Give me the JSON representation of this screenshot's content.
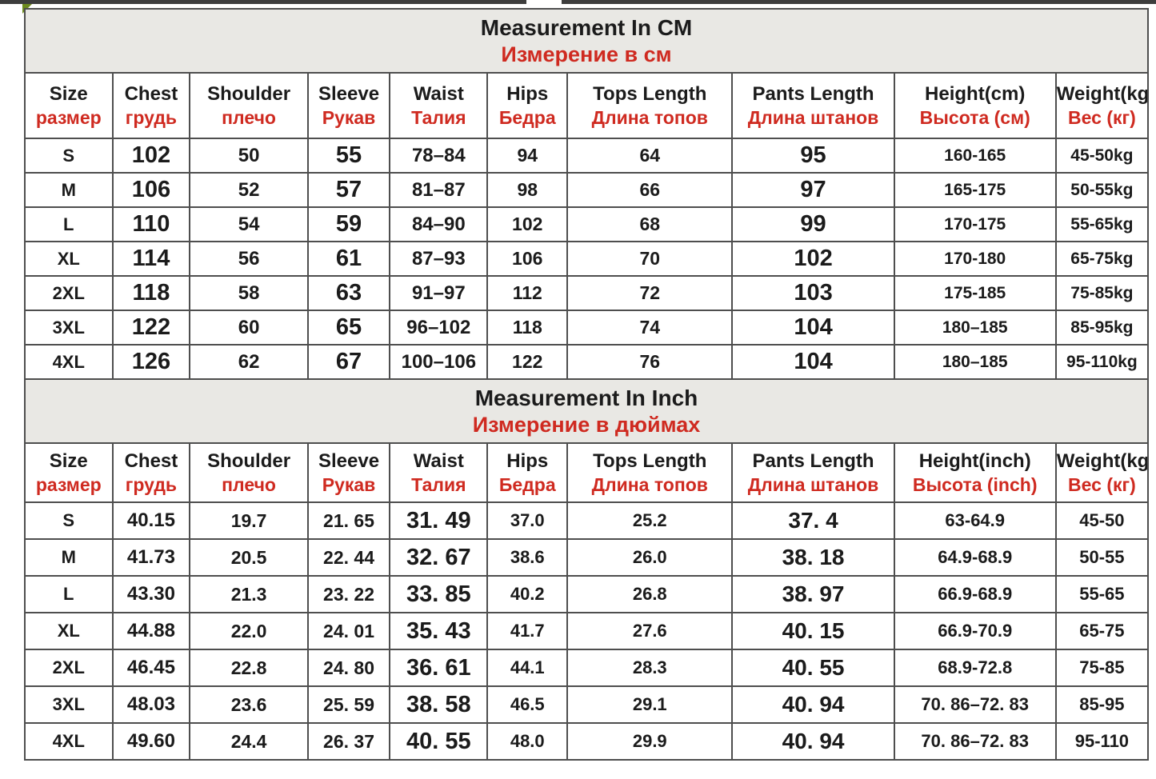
{
  "page": {
    "accent_red": "#cf2a20",
    "text_color": "#1b1b1b",
    "band_bg": "#e9e8e4",
    "border_color": "#4e4e4e"
  },
  "cm_section": {
    "title_en": "Measurement In CM",
    "title_ru": "Измерение в см",
    "headers_en": [
      "Size",
      "Chest",
      "Shoulder",
      "Sleeve",
      "Waist",
      "Hips",
      "Tops Length",
      "Pants Length",
      "Height(cm)",
      "Weight(kg)"
    ],
    "headers_ru": [
      "размер",
      "грудь",
      "плечо",
      "Рукав",
      "Талия",
      "Бедра",
      "Длина топов",
      "Длина штанов",
      "Высота (см)",
      "Вес (кг)"
    ],
    "rows": [
      [
        "S",
        "102",
        "50",
        "55",
        "78–84",
        "94",
        "64",
        "95",
        "160-165",
        "45-50kg"
      ],
      [
        "M",
        "106",
        "52",
        "57",
        "81–87",
        "98",
        "66",
        "97",
        "165-175",
        "50-55kg"
      ],
      [
        "L",
        "110",
        "54",
        "59",
        "84–90",
        "102",
        "68",
        "99",
        "170-175",
        "55-65kg"
      ],
      [
        "XL",
        "114",
        "56",
        "61",
        "87–93",
        "106",
        "70",
        "102",
        "170-180",
        "65-75kg"
      ],
      [
        "2XL",
        "118",
        "58",
        "63",
        "91–97",
        "112",
        "72",
        "103",
        "175-185",
        "75-85kg"
      ],
      [
        "3XL",
        "122",
        "60",
        "65",
        "96–102",
        "118",
        "74",
        "104",
        "180–185",
        "85-95kg"
      ],
      [
        "4XL",
        "126",
        "62",
        "67",
        "100–106",
        "122",
        "76",
        "104",
        "180–185",
        "95-110kg"
      ]
    ]
  },
  "inch_section": {
    "title_en": "Measurement In Inch",
    "title_ru": "Измерение в дюймах",
    "headers_en": [
      "Size",
      "Chest",
      "Shoulder",
      "Sleeve",
      "Waist",
      "Hips",
      "Tops Length",
      "Pants Length",
      "Height(inch)",
      "Weight(kg)"
    ],
    "headers_ru": [
      "размер",
      "грудь",
      "плечо",
      "Рукав",
      "Талия",
      "Бедра",
      "Длина топов",
      "Длина штанов",
      "Высота (inch)",
      "Вес (кг)"
    ],
    "rows": [
      [
        "S",
        "40.15",
        "19.7",
        "21. 65",
        "31. 49",
        "37.0",
        "25.2",
        "37. 4",
        "63-64.9",
        "45-50"
      ],
      [
        "M",
        "41.73",
        "20.5",
        "22. 44",
        "32. 67",
        "38.6",
        "26.0",
        "38. 18",
        "64.9-68.9",
        "50-55"
      ],
      [
        "L",
        "43.30",
        "21.3",
        "23. 22",
        "33. 85",
        "40.2",
        "26.8",
        "38. 97",
        "66.9-68.9",
        "55-65"
      ],
      [
        "XL",
        "44.88",
        "22.0",
        "24. 01",
        "35. 43",
        "41.7",
        "27.6",
        "40. 15",
        "66.9-70.9",
        "65-75"
      ],
      [
        "2XL",
        "46.45",
        "22.8",
        "24. 80",
        "36. 61",
        "44.1",
        "28.3",
        "40. 55",
        "68.9-72.8",
        "75-85"
      ],
      [
        "3XL",
        "48.03",
        "23.6",
        "25. 59",
        "38. 58",
        "46.5",
        "29.1",
        "40. 94",
        "70. 86–72. 83",
        "85-95"
      ],
      [
        "4XL",
        "49.60",
        "24.4",
        "26. 37",
        "40. 55",
        "48.0",
        "29.9",
        "40. 94",
        "70. 86–72. 83",
        "95-110"
      ]
    ]
  }
}
